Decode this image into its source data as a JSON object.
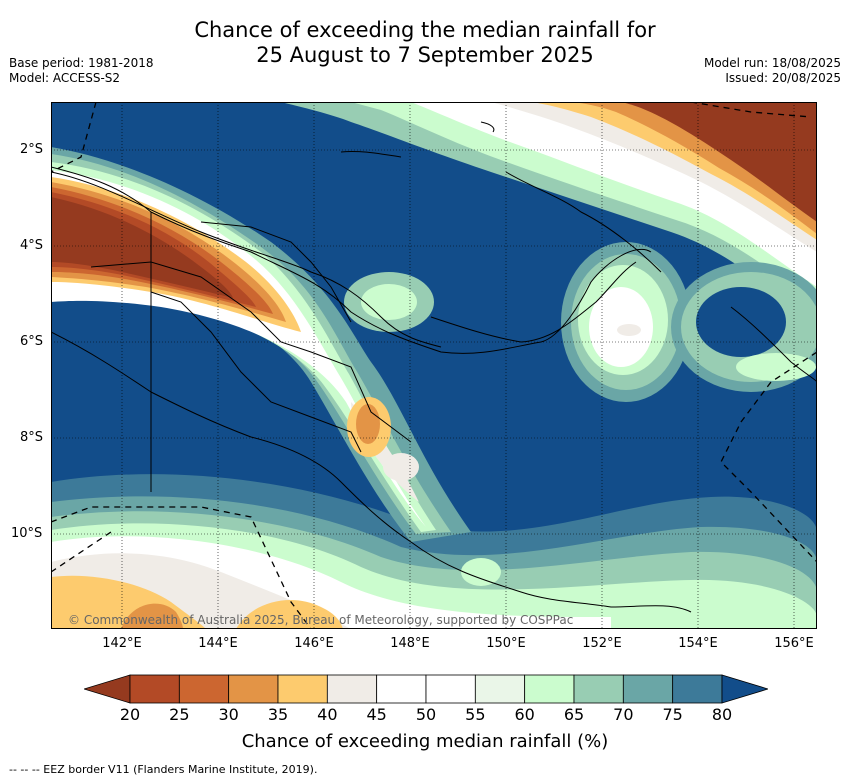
{
  "header": {
    "title_line1": "Chance of exceeding the median rainfall for",
    "title_line2": "25 August to 7 September 2025",
    "base_period": "Base period: 1981-2018",
    "model": "Model: ACCESS-S2",
    "model_run": "Model run: 18/08/2025",
    "issued": "Issued: 20/08/2025"
  },
  "map": {
    "copyright": "© Commonwealth of Australia 2025, Bureau of Meteorology, supported by COSPPac",
    "lat_labels": [
      "2°S",
      "4°S",
      "6°S",
      "8°S",
      "10°S"
    ],
    "lon_labels": [
      "142°E",
      "144°E",
      "146°E",
      "148°E",
      "150°E",
      "152°E",
      "154°E",
      "156°E"
    ]
  },
  "legend": {
    "title": "Chance of exceeding median rainfall (%)",
    "ticks": [
      "20",
      "25",
      "30",
      "35",
      "40",
      "45",
      "50",
      "55",
      "60",
      "65",
      "70",
      "75",
      "80"
    ],
    "colors": [
      "#953a1f",
      "#b34a26",
      "#cc6630",
      "#e39446",
      "#fdcb6e",
      "#f0ece7",
      "#ffffff",
      "#ffffff",
      "#eaf6e8",
      "#cbfcce",
      "#98cdb3",
      "#6aa6a6",
      "#3d7a99",
      "#124d8a"
    ],
    "eez_note": "--  --  -- EEZ border V11 (Flanders Marine Institute, 2019)."
  }
}
